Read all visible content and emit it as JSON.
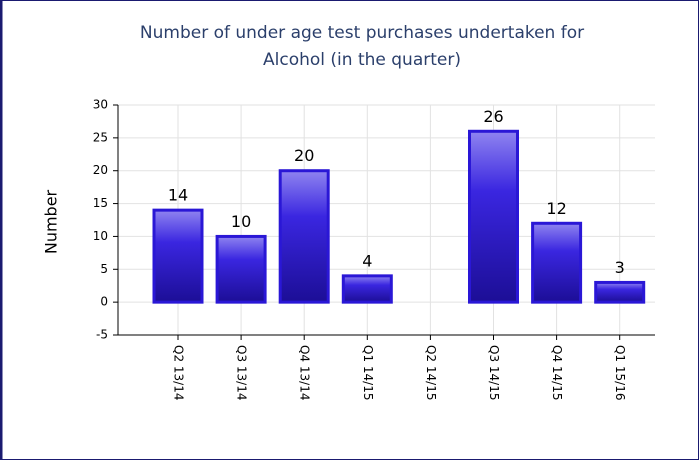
{
  "chart_data": {
    "type": "bar",
    "title": [
      "Number of under age test purchases undertaken for",
      "Alcohol (in the quarter)"
    ],
    "y_label": "Number",
    "categories": [
      "Q2 13/14",
      "Q3 13/14",
      "Q4 13/14",
      "Q1 14/15",
      "Q2 14/15",
      "Q3 14/15",
      "Q4 14/15",
      "Q1 15/16"
    ],
    "values": [
      14,
      10,
      20,
      4,
      null,
      26,
      12,
      3
    ],
    "color": "#2a17d6",
    "ylim": [
      -5,
      30
    ],
    "yticks": [
      -5,
      0,
      5,
      10,
      15,
      20,
      25,
      30
    ],
    "grid": true
  }
}
